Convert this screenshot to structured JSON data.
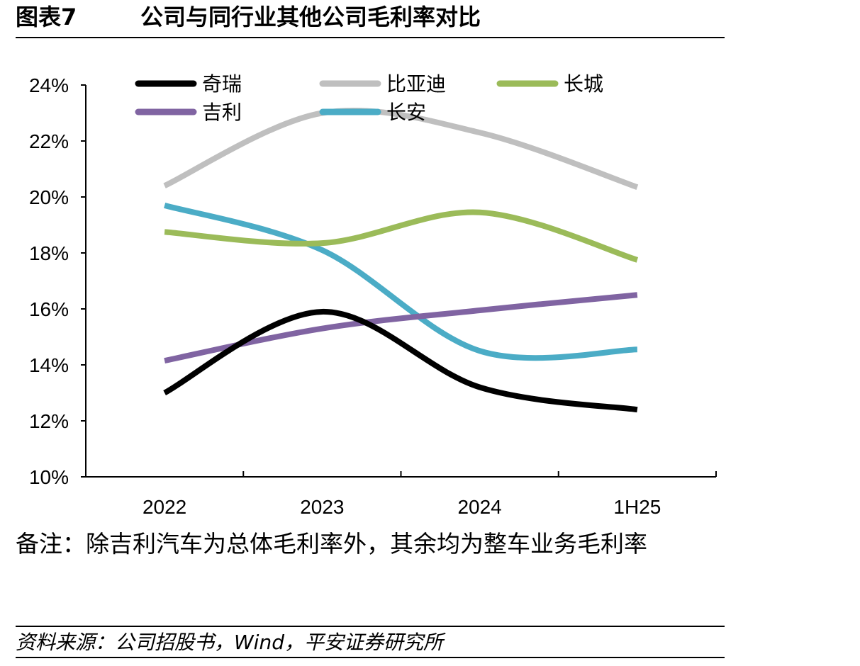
{
  "figure": {
    "number": "图表7",
    "title": "公司与同行业其他公司毛利率对比"
  },
  "note": "备注：除吉利汽车为总体毛利率外，其余均为整车业务毛利率",
  "source": "资料来源：公司招股书，Wind，平安证券研究所",
  "chart_data": {
    "type": "line",
    "categories": [
      "2022",
      "2023",
      "2024",
      "1H25"
    ],
    "ylim": [
      10,
      24
    ],
    "yticks": [
      10,
      12,
      14,
      16,
      18,
      20,
      22,
      24
    ],
    "ytick_labels": [
      "10%",
      "12%",
      "14%",
      "16%",
      "18%",
      "20%",
      "22%",
      "24%"
    ],
    "smooth": true,
    "grid": false,
    "legend_position": "top",
    "series": [
      {
        "name": "奇瑞",
        "color": "#000000",
        "values": [
          13.0,
          15.9,
          13.2,
          12.4
        ]
      },
      {
        "name": "比亚迪",
        "color": "#BFBFBF",
        "values": [
          20.4,
          23.0,
          22.3,
          20.35
        ]
      },
      {
        "name": "长城",
        "color": "#9BBB59",
        "values": [
          18.75,
          18.35,
          19.45,
          17.75
        ]
      },
      {
        "name": "吉利",
        "color": "#8064A2",
        "values": [
          14.15,
          15.3,
          15.95,
          16.5
        ]
      },
      {
        "name": "长安",
        "color": "#4BACC6",
        "values": [
          19.7,
          18.1,
          14.5,
          14.55
        ]
      }
    ]
  }
}
